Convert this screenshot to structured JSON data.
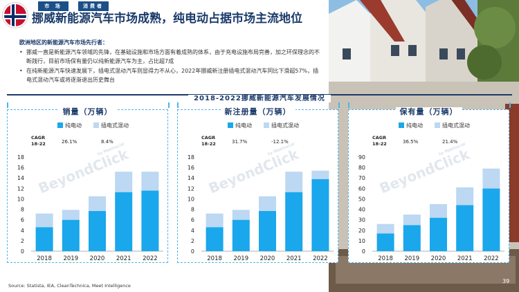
{
  "header": {
    "tab_market": "市 场",
    "tab_consumer": "消费者",
    "title": "挪威新能源汽车市场成熟，纯电动占据市场主流地位"
  },
  "intro": {
    "subtitle": "欧洲地区的新能源汽车市场先行者：",
    "bullets": [
      "挪威一直是新能源汽车领域的先锋，在基础设施和市场方面有着成熟的体系，由于充电设施布局完善，加之环保理念的不断践行，目前市场保有量仍以纯新能源汽车为主，占比超7成",
      "在纯新能源汽车快速发展下，插电式混动汽车则显得力不从心，2022年挪威新注册插电式混动汽车同比下滑超57%，插电式混动汽车或将逐渐退出历史舞台"
    ]
  },
  "section_title": "2018-2022挪威新能源汽车发展情况",
  "colors": {
    "bev": "#1aa7ec",
    "phev": "#bcd8f2",
    "accent": "#1a3a6a",
    "border": "#4fb3e8"
  },
  "chart_data": [
    {
      "type": "bar",
      "stacked": true,
      "title": "销量（万辆）",
      "categories": [
        "2018",
        "2019",
        "2020",
        "2021",
        "2022"
      ],
      "series": [
        {
          "name": "纯电动",
          "values": [
            4.6,
            6.0,
            7.7,
            11.3,
            11.6
          ]
        },
        {
          "name": "插电式混动",
          "values": [
            2.6,
            1.9,
            2.8,
            3.9,
            3.6
          ]
        }
      ],
      "ylim": [
        0,
        18
      ],
      "yticks": [
        0,
        2,
        4,
        6,
        8,
        10,
        12,
        14,
        16,
        18
      ],
      "cagr_label": "CAGR\n18-22",
      "cagr_values": [
        "26.1%",
        "8.4%"
      ],
      "legend": "top"
    },
    {
      "type": "bar",
      "stacked": true,
      "title": "新注册量（万辆）",
      "categories": [
        "2018",
        "2019",
        "2020",
        "2021",
        "2022"
      ],
      "series": [
        {
          "name": "纯电动",
          "values": [
            4.6,
            6.0,
            7.7,
            11.3,
            13.8
          ]
        },
        {
          "name": "插电式混动",
          "values": [
            2.6,
            1.9,
            2.8,
            3.9,
            1.6
          ]
        }
      ],
      "ylim": [
        0,
        18
      ],
      "yticks": [
        0,
        2,
        4,
        6,
        8,
        10,
        12,
        14,
        16,
        18
      ],
      "cagr_label": "CAGR\n18-22",
      "cagr_values": [
        "31.7%",
        "-12.1%"
      ],
      "legend": "top"
    },
    {
      "type": "bar",
      "stacked": true,
      "title": "保有量（万辆）",
      "categories": [
        "2018",
        "2019",
        "2020",
        "2021",
        "2022"
      ],
      "series": [
        {
          "name": "纯电动",
          "values": [
            17,
            25,
            32,
            44,
            60
          ]
        },
        {
          "name": "插电式混动",
          "values": [
            9,
            10,
            13,
            17,
            19
          ]
        }
      ],
      "ylim": [
        0,
        90
      ],
      "yticks": [
        0,
        10,
        20,
        30,
        40,
        50,
        60,
        70,
        80,
        90
      ],
      "cagr_label": "CAGR\n18-22",
      "cagr_values": [
        "36.5%",
        "21.4%"
      ],
      "legend": "top"
    }
  ],
  "watermark": "BeyondClick",
  "watermark_small": "by Meetsocial",
  "source": "Source: Statista, IEA, CleanTechnica, Meet Intelligence",
  "page_number": "39"
}
